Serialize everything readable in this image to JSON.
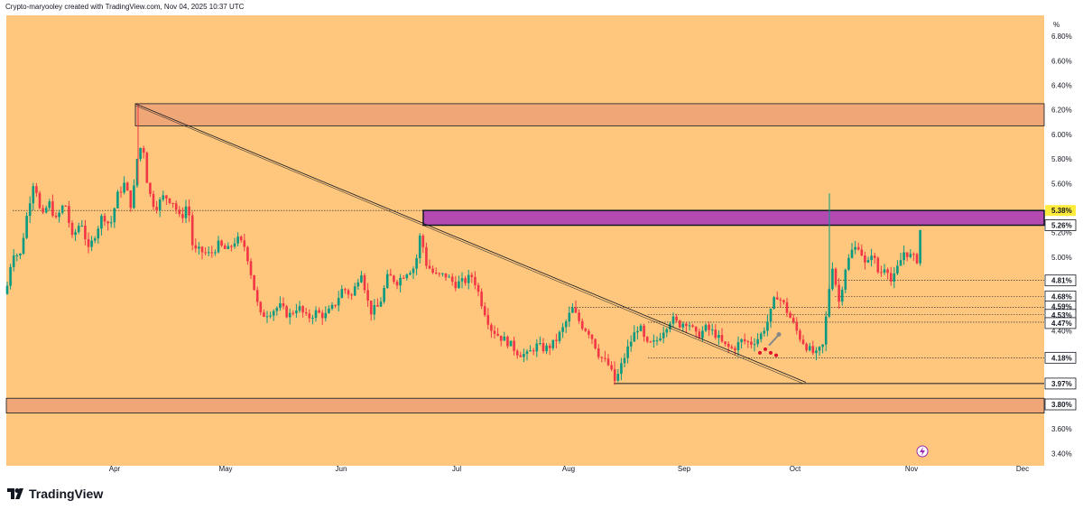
{
  "header": {
    "attribution": "Crypto-maryooley created with TradingView.com, Nov 04, 2025 10:37 UTC"
  },
  "footer": {
    "brand": "TradingView"
  },
  "colors": {
    "background": "#fec77d",
    "bullish": "#089981",
    "bearish": "#f23645",
    "resistance_zone": "#f0a777",
    "purple_zone": "#b24ab2",
    "support_zone": "#f0a777"
  },
  "chart_data": {
    "type": "candlestick",
    "title": "",
    "y_unit": "%",
    "ylim": [
      3.3,
      6.97
    ],
    "y_ticks": [
      {
        "value": 6.8,
        "label": "6.80%"
      },
      {
        "value": 6.6,
        "label": "6.60%"
      },
      {
        "value": 6.4,
        "label": "6.40%"
      },
      {
        "value": 6.2,
        "label": "6.20%"
      },
      {
        "value": 6.0,
        "label": "6.00%"
      },
      {
        "value": 5.8,
        "label": "5.80%"
      },
      {
        "value": 5.6,
        "label": "5.60%"
      },
      {
        "value": 5.2,
        "label": "5.20%"
      },
      {
        "value": 5.0,
        "label": "5.00%"
      },
      {
        "value": 4.4,
        "label": "4.40%"
      },
      {
        "value": 3.6,
        "label": "3.60%"
      },
      {
        "value": 3.4,
        "label": "3.40%"
      }
    ],
    "x_ticks": [
      "Apr",
      "May",
      "Jun",
      "Jul",
      "Aug",
      "Sep",
      "Oct",
      "Nov",
      "Dec"
    ],
    "price_labels": [
      {
        "value": 5.38,
        "label": "5.38%",
        "style": "yellow"
      },
      {
        "value": 5.26,
        "label": "5.26%",
        "style": "white"
      },
      {
        "value": 4.81,
        "label": "4.81%",
        "style": "white"
      },
      {
        "value": 4.68,
        "label": "4.68%",
        "style": "white"
      },
      {
        "value": 4.59,
        "label": "4.59%",
        "style": "white"
      },
      {
        "value": 4.53,
        "label": "4.53%",
        "style": "white"
      },
      {
        "value": 4.47,
        "label": "4.47%",
        "style": "white"
      },
      {
        "value": 4.18,
        "label": "4.18%",
        "style": "white"
      },
      {
        "value": 3.97,
        "label": "3.97%",
        "style": "white"
      },
      {
        "value": 3.8,
        "label": "3.80%",
        "style": "white"
      }
    ],
    "zones": [
      {
        "name": "resistance-zone",
        "from": 6.07,
        "to": 6.25,
        "start": "Apr"
      },
      {
        "name": "purple-zone",
        "from": 5.26,
        "to": 5.38,
        "start": "Jun"
      },
      {
        "name": "support-zone",
        "from": 3.73,
        "to": 3.85,
        "start": "Mar"
      }
    ],
    "levels": [
      {
        "value": 5.38,
        "style": "dotted",
        "start": "Mar"
      },
      {
        "value": 4.81,
        "style": "dotted",
        "start": "Oct"
      },
      {
        "value": 4.68,
        "style": "dotted",
        "start": "Oct"
      },
      {
        "value": 4.59,
        "style": "dotted",
        "start": "Aug"
      },
      {
        "value": 4.53,
        "style": "dotted",
        "start": "Sep"
      },
      {
        "value": 4.47,
        "style": "dotted",
        "start": "Sep"
      },
      {
        "value": 4.18,
        "style": "dotted",
        "start": "Aug"
      },
      {
        "value": 3.97,
        "style": "solid",
        "start": "Aug"
      }
    ],
    "trendline": {
      "from": {
        "date": "Apr",
        "value": 6.25
      },
      "to": {
        "date": "Oct",
        "value": 3.98
      }
    },
    "series": {
      "name": "daily",
      "start_value": 4.7,
      "end_value": 5.38,
      "high": 6.25,
      "low": 3.96
    }
  }
}
